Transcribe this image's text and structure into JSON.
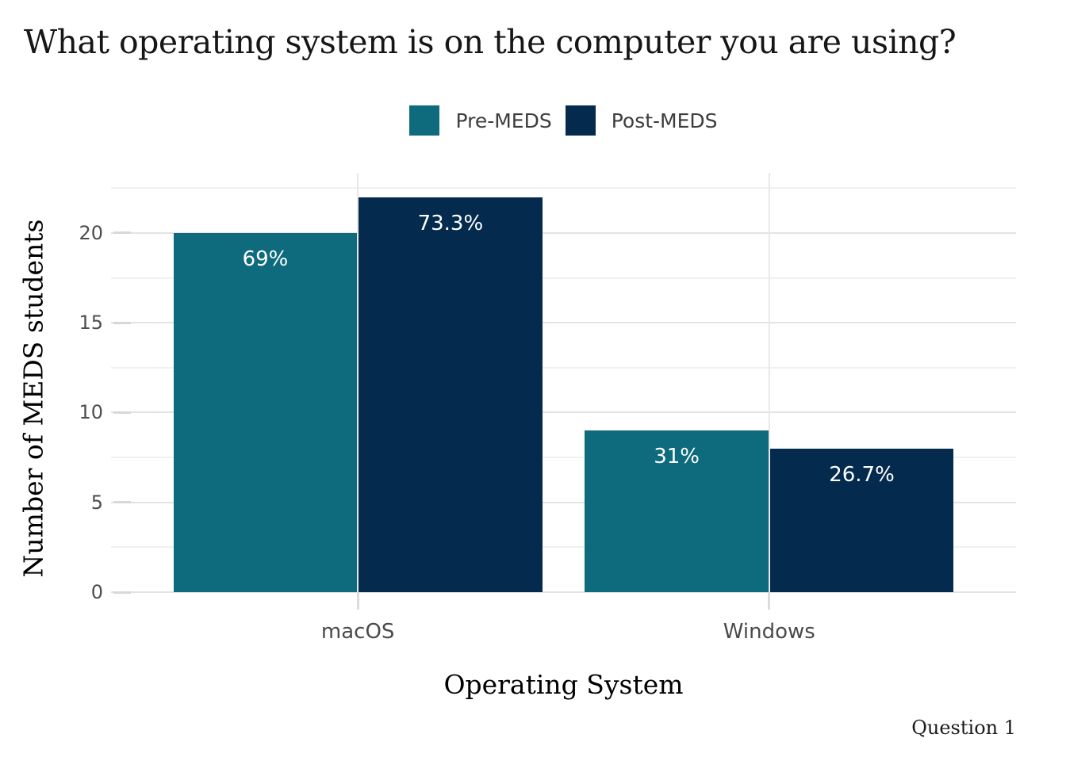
{
  "chart_data": {
    "type": "bar",
    "title": "What operating system is on the computer you are using?",
    "categories": [
      "macOS",
      "Windows"
    ],
    "series": [
      {
        "name": "Pre-MEDS",
        "color": "#0E6A7D",
        "values": [
          20,
          9
        ],
        "bar_labels": [
          "69%",
          "31%"
        ]
      },
      {
        "name": "Post-MEDS",
        "color": "#042A4D",
        "values": [
          22,
          8
        ],
        "bar_labels": [
          "73.3%",
          "26.7%"
        ]
      }
    ],
    "xlabel": "Operating System",
    "ylabel": "Number of MEDS students",
    "caption": "Question 1",
    "y_ticks": [
      0,
      5,
      10,
      15,
      20
    ],
    "y_minor_ticks": [
      2.5,
      7.5,
      12.5,
      17.5,
      22.5
    ],
    "ylim": [
      0,
      23.35
    ],
    "legend_position": "top-center",
    "grid": {
      "horizontal_major": true,
      "horizontal_minor": true,
      "vertical_at_categories": true
    },
    "bar_label_text_color": "#ffffff",
    "grid_major_color": "#e3e3e3",
    "grid_minor_color": "#f1f1f1",
    "axis_text_color": "#4d4d4d"
  }
}
